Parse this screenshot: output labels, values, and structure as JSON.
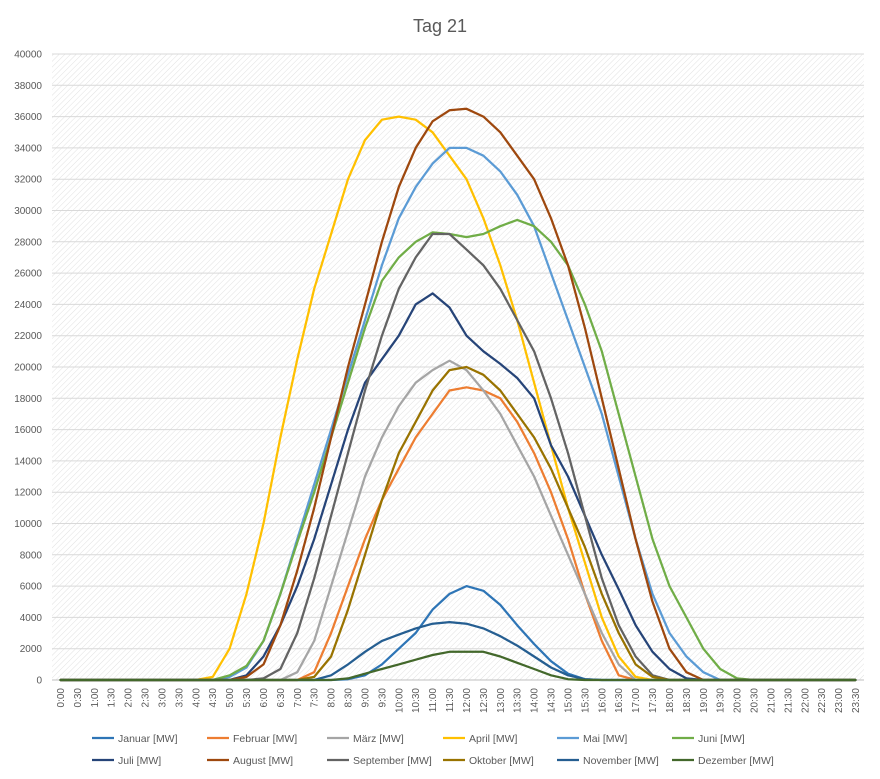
{
  "chart_data": {
    "type": "line",
    "title": "Tag 21",
    "xlabel": "",
    "ylabel": "",
    "ylim": [
      0,
      40000
    ],
    "yticks": [
      0,
      2000,
      4000,
      6000,
      8000,
      10000,
      12000,
      14000,
      16000,
      18000,
      20000,
      22000,
      24000,
      26000,
      28000,
      30000,
      32000,
      34000,
      36000,
      38000,
      40000
    ],
    "x": [
      "0:00",
      "0:30",
      "1:00",
      "1:30",
      "2:00",
      "2:30",
      "3:00",
      "3:30",
      "4:00",
      "4:30",
      "5:00",
      "5:30",
      "6:00",
      "6:30",
      "7:00",
      "7:30",
      "8:00",
      "8:30",
      "9:00",
      "9:30",
      "10:00",
      "10:30",
      "11:00",
      "11:30",
      "12:00",
      "12:30",
      "13:00",
      "13:30",
      "14:00",
      "14:30",
      "15:00",
      "15:30",
      "16:00",
      "16:30",
      "17:00",
      "17:30",
      "18:00",
      "18:30",
      "19:00",
      "19:30",
      "20:00",
      "20:30",
      "21:00",
      "21:30",
      "22:00",
      "22:30",
      "23:00",
      "23:30"
    ],
    "grid": true,
    "legend_position": "bottom",
    "series": [
      {
        "name": "Januar [MW]",
        "color": "#2e75b6",
        "values": [
          0,
          0,
          0,
          0,
          0,
          0,
          0,
          0,
          0,
          0,
          0,
          0,
          0,
          0,
          0,
          0,
          0,
          50,
          300,
          1000,
          2000,
          3000,
          4500,
          5500,
          6000,
          5700,
          4800,
          3500,
          2300,
          1200,
          400,
          50,
          0,
          0,
          0,
          0,
          0,
          0,
          0,
          0,
          0,
          0,
          0,
          0,
          0,
          0,
          0,
          0
        ]
      },
      {
        "name": "Februar [MW]",
        "color": "#ed7d31",
        "values": [
          0,
          0,
          0,
          0,
          0,
          0,
          0,
          0,
          0,
          0,
          0,
          0,
          0,
          0,
          0,
          500,
          3000,
          6000,
          9000,
          11500,
          13500,
          15500,
          17000,
          18500,
          18700,
          18500,
          18000,
          16500,
          14500,
          12000,
          9000,
          5500,
          2500,
          300,
          0,
          0,
          0,
          0,
          0,
          0,
          0,
          0,
          0,
          0,
          0,
          0,
          0,
          0
        ]
      },
      {
        "name": "März [MW]",
        "color": "#a5a5a5",
        "values": [
          0,
          0,
          0,
          0,
          0,
          0,
          0,
          0,
          0,
          0,
          0,
          0,
          0,
          0,
          500,
          2500,
          6000,
          9500,
          13000,
          15500,
          17500,
          19000,
          19800,
          20400,
          19800,
          18500,
          17000,
          15000,
          13000,
          10500,
          8000,
          5500,
          3000,
          1000,
          0,
          0,
          0,
          0,
          0,
          0,
          0,
          0,
          0,
          0,
          0,
          0,
          0,
          0
        ]
      },
      {
        "name": "April [MW]",
        "color": "#ffc000",
        "values": [
          0,
          0,
          0,
          0,
          0,
          0,
          0,
          0,
          0,
          200,
          2000,
          5500,
          10000,
          15500,
          20500,
          25000,
          28500,
          32000,
          34500,
          35800,
          36000,
          35800,
          35000,
          33500,
          32000,
          29500,
          26500,
          23000,
          19000,
          15000,
          11000,
          7500,
          4000,
          1500,
          200,
          0,
          0,
          0,
          0,
          0,
          0,
          0,
          0,
          0,
          0,
          0,
          0,
          0
        ]
      },
      {
        "name": "Mai [MW]",
        "color": "#5b9bd5",
        "values": [
          0,
          0,
          0,
          0,
          0,
          0,
          0,
          0,
          0,
          0,
          200,
          800,
          2500,
          5500,
          9000,
          12500,
          16000,
          19500,
          23000,
          26500,
          29500,
          31500,
          33000,
          34000,
          34000,
          33500,
          32500,
          31000,
          29000,
          26000,
          23000,
          20000,
          17000,
          13000,
          9000,
          5500,
          3000,
          1500,
          500,
          0,
          0,
          0,
          0,
          0,
          0,
          0,
          0,
          0
        ]
      },
      {
        "name": "Juni [MW]",
        "color": "#70ad47",
        "values": [
          0,
          0,
          0,
          0,
          0,
          0,
          0,
          0,
          0,
          0,
          300,
          900,
          2500,
          5500,
          8800,
          12000,
          15500,
          19000,
          22500,
          25500,
          27000,
          28000,
          28600,
          28500,
          28300,
          28500,
          29000,
          29400,
          29000,
          28000,
          26500,
          24000,
          21000,
          17000,
          13000,
          9000,
          6000,
          4000,
          2000,
          700,
          100,
          0,
          0,
          0,
          0,
          0,
          0,
          0
        ]
      },
      {
        "name": "Juli [MW]",
        "color": "#264478",
        "values": [
          0,
          0,
          0,
          0,
          0,
          0,
          0,
          0,
          0,
          0,
          0,
          300,
          1500,
          3500,
          6000,
          9000,
          12500,
          16000,
          19000,
          20500,
          22000,
          24000,
          24700,
          23800,
          22000,
          21000,
          20200,
          19300,
          18000,
          15000,
          13000,
          10500,
          8000,
          5800,
          3500,
          1800,
          700,
          100,
          0,
          0,
          0,
          0,
          0,
          0,
          0,
          0,
          0,
          0
        ]
      },
      {
        "name": "August [MW]",
        "color": "#9e480e",
        "values": [
          0,
          0,
          0,
          0,
          0,
          0,
          0,
          0,
          0,
          0,
          0,
          200,
          1000,
          3500,
          7000,
          11000,
          15500,
          20000,
          24000,
          28000,
          31500,
          34000,
          35700,
          36400,
          36500,
          36000,
          35000,
          33500,
          32000,
          29500,
          26500,
          22500,
          18000,
          13500,
          9000,
          5000,
          2000,
          500,
          0,
          0,
          0,
          0,
          0,
          0,
          0,
          0,
          0,
          0
        ]
      },
      {
        "name": "September [MW]",
        "color": "#636363",
        "values": [
          0,
          0,
          0,
          0,
          0,
          0,
          0,
          0,
          0,
          0,
          0,
          0,
          100,
          700,
          3000,
          6500,
          10500,
          14500,
          18500,
          22000,
          25000,
          27000,
          28500,
          28500,
          27500,
          26500,
          25000,
          23000,
          21000,
          18000,
          14500,
          10500,
          6500,
          3500,
          1500,
          300,
          0,
          0,
          0,
          0,
          0,
          0,
          0,
          0,
          0,
          0,
          0,
          0
        ]
      },
      {
        "name": "Oktober [MW]",
        "color": "#997300",
        "values": [
          0,
          0,
          0,
          0,
          0,
          0,
          0,
          0,
          0,
          0,
          0,
          0,
          0,
          0,
          0,
          200,
          1500,
          4500,
          8000,
          11500,
          14500,
          16500,
          18500,
          19800,
          20000,
          19500,
          18500,
          17000,
          15500,
          13500,
          11000,
          8500,
          5500,
          3000,
          1000,
          200,
          0,
          0,
          0,
          0,
          0,
          0,
          0,
          0,
          0,
          0,
          0,
          0
        ]
      },
      {
        "name": "November [MW]",
        "color": "#255e91",
        "values": [
          0,
          0,
          0,
          0,
          0,
          0,
          0,
          0,
          0,
          0,
          0,
          0,
          0,
          0,
          0,
          0,
          300,
          1000,
          1800,
          2500,
          2900,
          3300,
          3600,
          3700,
          3600,
          3300,
          2800,
          2200,
          1500,
          800,
          300,
          50,
          0,
          0,
          0,
          0,
          0,
          0,
          0,
          0,
          0,
          0,
          0,
          0,
          0,
          0,
          0,
          0
        ]
      },
      {
        "name": "Dezember [MW]",
        "color": "#43682b",
        "values": [
          0,
          0,
          0,
          0,
          0,
          0,
          0,
          0,
          0,
          0,
          0,
          0,
          0,
          0,
          0,
          0,
          0,
          100,
          400,
          700,
          1000,
          1300,
          1600,
          1800,
          1800,
          1800,
          1500,
          1100,
          700,
          300,
          50,
          0,
          0,
          0,
          0,
          0,
          0,
          0,
          0,
          0,
          0,
          0,
          0,
          0,
          0,
          0,
          0,
          0
        ]
      }
    ]
  }
}
